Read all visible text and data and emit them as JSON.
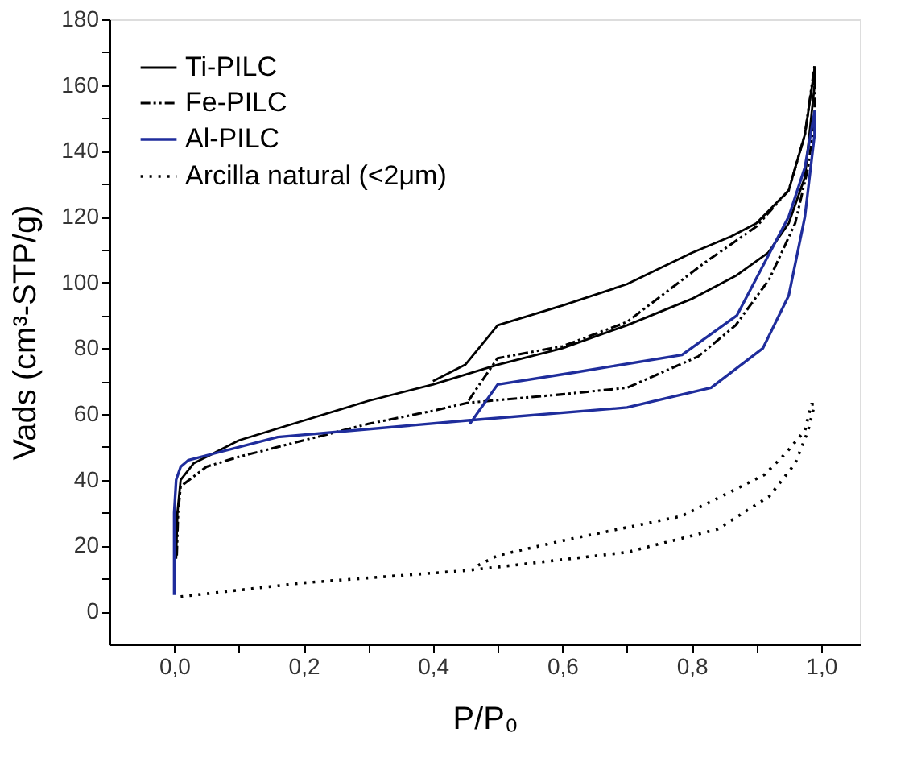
{
  "chart_data": {
    "type": "line",
    "xlabel": "P/P₀",
    "ylabel": "Vads (cm³-STP/g)",
    "xlim": [
      -0.1,
      1.06
    ],
    "ylim": [
      -10,
      180
    ],
    "xticks": [
      {
        "value": 0,
        "label": "0,0"
      },
      {
        "value": 0.1,
        "label": null
      },
      {
        "value": 0.2,
        "label": "0,2"
      },
      {
        "value": 0.3,
        "label": null
      },
      {
        "value": 0.4,
        "label": "0,4"
      },
      {
        "value": 0.5,
        "label": null
      },
      {
        "value": 0.6,
        "label": "0,6"
      },
      {
        "value": 0.7,
        "label": null
      },
      {
        "value": 0.8,
        "label": "0,8"
      },
      {
        "value": 0.9,
        "label": null
      },
      {
        "value": 1.0,
        "label": "1,0"
      }
    ],
    "yticks": [
      0,
      {
        "value": 10,
        "label": null
      },
      20,
      {
        "value": 30,
        "label": null
      },
      40,
      {
        "value": 50,
        "label": null
      },
      60,
      {
        "value": 70,
        "label": null
      },
      80,
      {
        "value": 90,
        "label": null
      },
      100,
      {
        "value": 110,
        "label": null
      },
      120,
      {
        "value": 130,
        "label": null
      },
      140,
      {
        "value": 150,
        "label": null
      },
      160,
      {
        "value": 170,
        "label": null
      },
      180
    ],
    "grid": false,
    "legend": "top left",
    "marker": "none",
    "series": [
      {
        "name": "Ti-PILC",
        "color": "#000000",
        "line_style": "solid",
        "x": [
          0.003,
          0.005,
          0.01,
          0.03,
          0.05,
          0.1,
          0.2,
          0.3,
          0.4,
          0.5,
          0.6,
          0.7,
          0.8,
          0.868,
          0.918,
          0.95,
          0.975,
          0.99,
          0.99,
          0.975,
          0.95,
          0.9,
          0.861,
          0.8,
          0.7,
          0.6,
          0.5,
          0.45,
          0.4
        ],
        "values": [
          16,
          30,
          40,
          45,
          47,
          52,
          58,
          64,
          69,
          75,
          80,
          87,
          95,
          102,
          109,
          118,
          132,
          160,
          165,
          145,
          128,
          118,
          114,
          109,
          99.5,
          93,
          87,
          75,
          70
        ]
      },
      {
        "name": "Fe-PILC",
        "color": "#000000",
        "line_style": "dashed",
        "x": [
          0.004,
          0.006,
          0.01,
          0.05,
          0.1,
          0.2,
          0.3,
          0.4,
          0.453,
          0.6,
          0.7,
          0.81,
          0.868,
          0.92,
          0.96,
          0.98,
          0.99,
          0.99,
          0.975,
          0.95,
          0.9,
          0.82,
          0.7,
          0.6,
          0.5,
          0.465,
          0.453
        ],
        "values": [
          17,
          30,
          38,
          44,
          47,
          52,
          57,
          61,
          63.4,
          66,
          68,
          77.5,
          87,
          101,
          118,
          135,
          150,
          166,
          145,
          128,
          117,
          106,
          88,
          80.6,
          77,
          67,
          63.4
        ]
      },
      {
        "name": "Al-PILC",
        "color": "#1f2d9c",
        "line_style": "solid",
        "x": [
          0.0,
          0.0,
          0.003,
          0.01,
          0.022,
          0.16,
          0.45,
          0.7,
          0.83,
          0.91,
          0.95,
          0.975,
          0.99,
          0.99,
          0.975,
          0.95,
          0.87,
          0.785,
          0.62,
          0.5,
          0.457
        ],
        "values": [
          5,
          30,
          40,
          44,
          46,
          53,
          58,
          62,
          68,
          80,
          96,
          120,
          145,
          152,
          135,
          120,
          90,
          78,
          72.7,
          69,
          57
        ]
      },
      {
        "name": "Arcilla natural (<2μm)",
        "color": "#000000",
        "line_style": "dotted",
        "x": [
          0.01,
          0.2,
          0.45,
          0.5,
          0.7,
          0.84,
          0.92,
          0.96,
          0.98,
          0.99,
          0.985,
          0.975,
          0.945,
          0.912,
          0.785,
          0.6,
          0.5,
          0.47
        ],
        "values": [
          4.5,
          8.7,
          12.4,
          13.5,
          18,
          25,
          35,
          45,
          55,
          63,
          63,
          55,
          48,
          41.5,
          29,
          21.5,
          17,
          14
        ]
      }
    ]
  }
}
